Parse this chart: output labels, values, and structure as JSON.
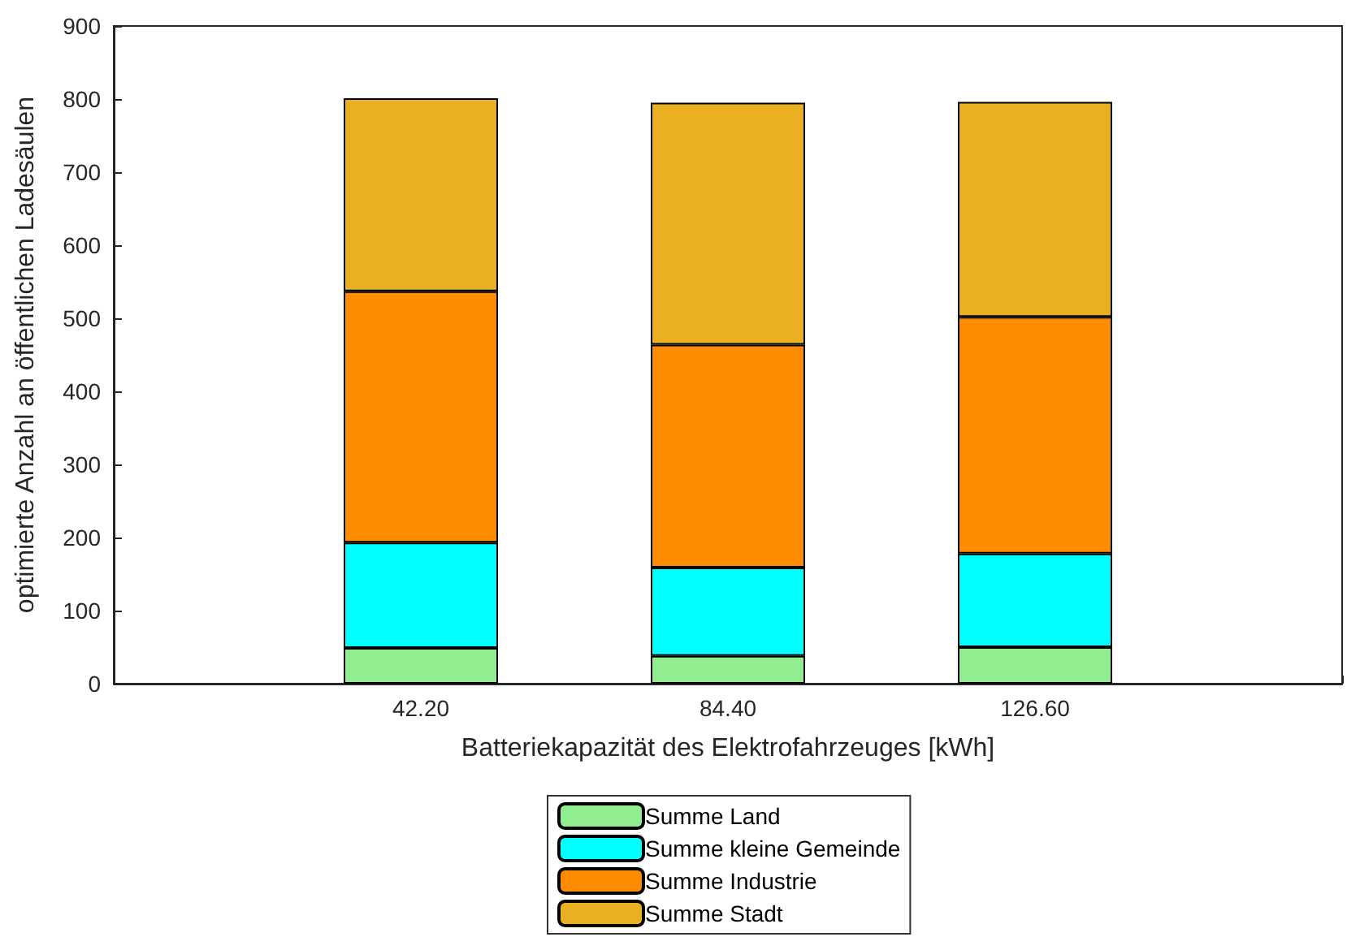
{
  "chart_data": {
    "type": "bar",
    "stacked": true,
    "xlabel": "Batteriekapazität des Elektrofahrzeuges [kWh]",
    "ylabel": "optimierte Anzahl an öffentlichen Ladesäulen",
    "categories": [
      "42.20",
      "84.40",
      "126.60"
    ],
    "series": [
      {
        "name": "Summe Land",
        "color": "#90ee90",
        "values": [
          49,
          38,
          50
        ]
      },
      {
        "name": "Summe kleine Gemeinde",
        "color": "#00ffff",
        "values": [
          144,
          121,
          128
        ]
      },
      {
        "name": "Summe Industrie",
        "color": "#ff8c00",
        "values": [
          344,
          305,
          324
        ]
      },
      {
        "name": "Summe Stadt",
        "color": "#ebb021",
        "values": [
          264,
          331,
          294
        ]
      }
    ],
    "ylim": [
      0,
      900
    ],
    "yticks": [
      0,
      100,
      200,
      300,
      400,
      500,
      600,
      700,
      800,
      900
    ],
    "grid": false,
    "legend": "bottom"
  }
}
